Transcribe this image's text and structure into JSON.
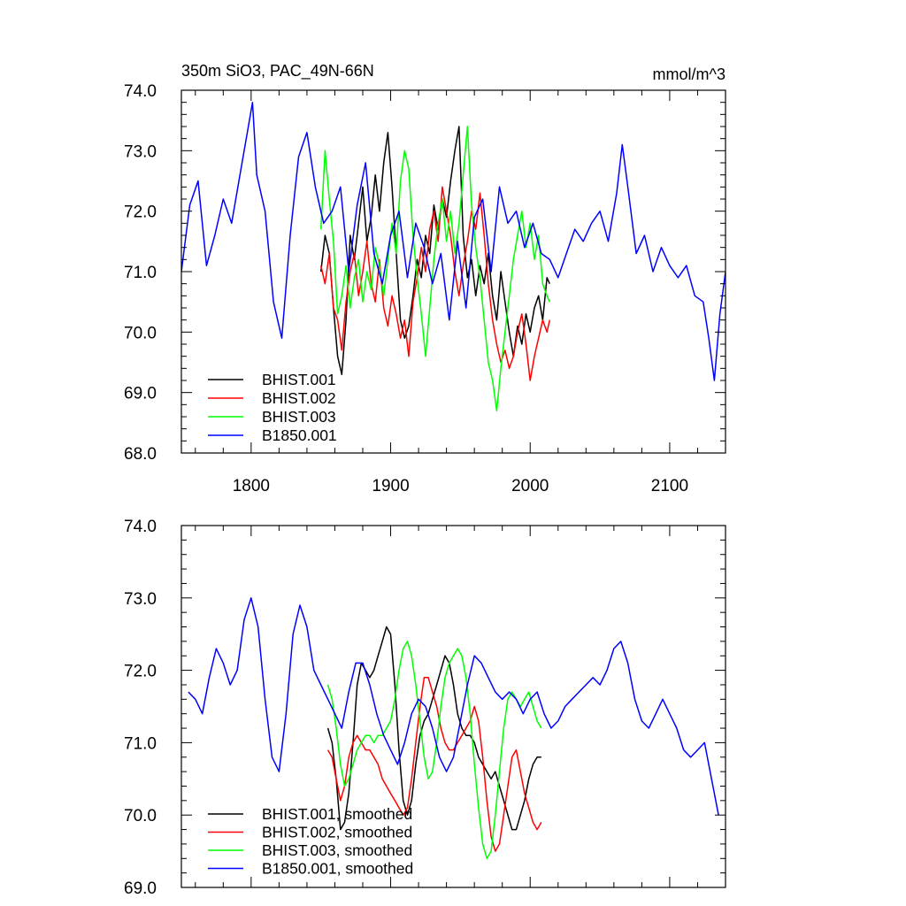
{
  "chart_data": [
    {
      "type": "line",
      "title": "350m SiO3, PAC_49N-66N",
      "units_label": "mmol/m^3",
      "xlabel": "",
      "ylabel": "",
      "xlim": [
        1750,
        2140
      ],
      "ylim": [
        68.0,
        74.0
      ],
      "x_ticks": [
        1800,
        1900,
        2000,
        2100
      ],
      "x_tick_labels": [
        "1800",
        "1900",
        "2000",
        "2100"
      ],
      "y_ticks": [
        68.0,
        69.0,
        70.0,
        71.0,
        72.0,
        73.0,
        74.0
      ],
      "y_tick_labels": [
        "68.0",
        "69.0",
        "70.0",
        "71.0",
        "72.0",
        "73.0",
        "74.0"
      ],
      "grid": false,
      "legend_position": "bottom-left",
      "series": [
        {
          "name": "BHIST.001",
          "color": "#000000",
          "x": [
            1850,
            1853,
            1856,
            1859,
            1862,
            1865,
            1868,
            1871,
            1874,
            1877,
            1880,
            1883,
            1886,
            1889,
            1892,
            1895,
            1898,
            1901,
            1904,
            1907,
            1910,
            1913,
            1916,
            1919,
            1922,
            1925,
            1928,
            1931,
            1934,
            1937,
            1940,
            1943,
            1946,
            1949,
            1952,
            1955,
            1958,
            1961,
            1964,
            1967,
            1970,
            1973,
            1976,
            1979,
            1982,
            1985,
            1988,
            1991,
            1994,
            1997,
            2000,
            2003,
            2006,
            2009,
            2012,
            2014
          ],
          "values": [
            71.0,
            71.6,
            71.3,
            70.4,
            69.6,
            69.3,
            70.2,
            71.6,
            71.2,
            71.8,
            72.4,
            71.5,
            71.9,
            72.6,
            72.0,
            72.8,
            73.3,
            72.4,
            71.3,
            70.2,
            69.9,
            70.1,
            70.6,
            71.2,
            70.9,
            71.6,
            71.3,
            72.1,
            71.7,
            72.2,
            71.9,
            72.5,
            73.0,
            73.4,
            71.6,
            70.9,
            71.2,
            70.6,
            71.1,
            70.8,
            71.3,
            70.6,
            70.2,
            71.0,
            70.5,
            70.0,
            69.6,
            70.1,
            69.8,
            70.3,
            70.0,
            70.4,
            70.6,
            70.2,
            70.9,
            70.8
          ]
        },
        {
          "name": "BHIST.002",
          "color": "#ff0000",
          "x": [
            1850,
            1853,
            1856,
            1859,
            1862,
            1865,
            1868,
            1871,
            1874,
            1877,
            1880,
            1883,
            1886,
            1889,
            1892,
            1895,
            1898,
            1901,
            1904,
            1907,
            1910,
            1913,
            1916,
            1919,
            1922,
            1925,
            1928,
            1931,
            1934,
            1937,
            1940,
            1943,
            1946,
            1949,
            1952,
            1955,
            1958,
            1961,
            1964,
            1967,
            1970,
            1973,
            1976,
            1979,
            1982,
            1985,
            1988,
            1991,
            1994,
            1997,
            2000,
            2003,
            2006,
            2009,
            2012,
            2014
          ],
          "values": [
            71.1,
            70.8,
            71.3,
            70.4,
            70.2,
            69.7,
            70.5,
            71.0,
            71.3,
            70.6,
            71.0,
            71.5,
            70.8,
            70.5,
            71.2,
            70.4,
            70.1,
            70.6,
            70.3,
            69.9,
            70.2,
            69.6,
            70.5,
            70.9,
            71.4,
            71.0,
            71.7,
            72.0,
            71.5,
            72.4,
            72.0,
            71.6,
            71.0,
            70.6,
            71.1,
            71.5,
            72.0,
            71.7,
            72.3,
            71.6,
            70.8,
            70.2,
            69.8,
            69.5,
            69.7,
            69.4,
            69.6,
            70.0,
            70.3,
            69.8,
            69.2,
            69.6,
            69.9,
            70.2,
            70.0,
            70.2
          ]
        },
        {
          "name": "BHIST.003",
          "color": "#00ff00",
          "x": [
            1850,
            1853,
            1856,
            1859,
            1862,
            1865,
            1868,
            1871,
            1874,
            1877,
            1880,
            1883,
            1886,
            1889,
            1892,
            1895,
            1898,
            1901,
            1904,
            1907,
            1910,
            1913,
            1916,
            1919,
            1922,
            1925,
            1928,
            1931,
            1934,
            1937,
            1940,
            1943,
            1946,
            1949,
            1952,
            1955,
            1958,
            1961,
            1964,
            1967,
            1970,
            1973,
            1976,
            1979,
            1982,
            1985,
            1988,
            1991,
            1994,
            1997,
            2000,
            2003,
            2006,
            2009,
            2012,
            2014
          ],
          "values": [
            71.7,
            73.0,
            72.2,
            71.5,
            70.3,
            70.6,
            71.1,
            70.4,
            70.9,
            71.2,
            70.5,
            71.0,
            70.7,
            71.4,
            71.1,
            70.6,
            71.2,
            71.8,
            71.3,
            72.5,
            73.0,
            72.7,
            71.6,
            70.9,
            70.3,
            69.6,
            70.4,
            71.2,
            71.8,
            72.2,
            71.5,
            72.0,
            71.3,
            71.8,
            72.6,
            73.4,
            72.1,
            71.4,
            70.9,
            70.2,
            69.5,
            69.2,
            68.7,
            69.4,
            70.0,
            70.6,
            71.2,
            71.6,
            72.0,
            71.4,
            71.8,
            71.2,
            71.6,
            70.8,
            70.6,
            70.5
          ]
        },
        {
          "name": "B1850.001",
          "color": "#0000ff",
          "x": [
            1750,
            1756,
            1762,
            1768,
            1774,
            1780,
            1786,
            1792,
            1798,
            1801,
            1804,
            1810,
            1816,
            1822,
            1828,
            1834,
            1840,
            1846,
            1852,
            1858,
            1864,
            1870,
            1876,
            1882,
            1888,
            1894,
            1900,
            1906,
            1912,
            1918,
            1924,
            1930,
            1936,
            1942,
            1948,
            1954,
            1960,
            1966,
            1972,
            1978,
            1984,
            1990,
            1996,
            2002,
            2008,
            2014,
            2020,
            2026,
            2032,
            2038,
            2044,
            2050,
            2056,
            2062,
            2066,
            2070,
            2076,
            2082,
            2088,
            2094,
            2100,
            2106,
            2112,
            2118,
            2124,
            2128,
            2132,
            2136,
            2140
          ],
          "values": [
            71.0,
            72.1,
            72.5,
            71.1,
            71.6,
            72.2,
            71.8,
            72.6,
            73.4,
            73.8,
            72.6,
            72.0,
            70.5,
            69.9,
            71.6,
            72.9,
            73.3,
            72.4,
            71.8,
            72.0,
            72.4,
            71.0,
            72.1,
            72.8,
            71.3,
            70.8,
            71.6,
            72.0,
            70.9,
            71.8,
            71.4,
            70.8,
            71.3,
            70.2,
            71.5,
            70.4,
            71.9,
            72.2,
            71.0,
            72.4,
            71.8,
            72.0,
            71.4,
            71.8,
            71.3,
            71.2,
            70.9,
            71.3,
            71.7,
            71.5,
            71.8,
            72.0,
            71.5,
            72.3,
            73.1,
            72.4,
            71.3,
            71.6,
            71.0,
            71.4,
            71.1,
            70.9,
            71.1,
            70.6,
            70.5,
            69.9,
            69.2,
            70.3,
            71.0
          ]
        }
      ]
    },
    {
      "type": "line",
      "title": "",
      "xlabel": "",
      "ylabel": "",
      "xlim": [
        1750,
        2140
      ],
      "ylim": [
        69.0,
        74.0
      ],
      "x_ticks": [
        1800,
        1900,
        2000,
        2100
      ],
      "y_ticks": [
        69.0,
        70.0,
        71.0,
        72.0,
        73.0,
        74.0
      ],
      "y_tick_labels": [
        "69.0",
        "70.0",
        "71.0",
        "72.0",
        "73.0",
        "74.0"
      ],
      "grid": false,
      "legend_position": "bottom-left",
      "series": [
        {
          "name": "BHIST.001, smoothed",
          "color": "#000000",
          "x": [
            1855,
            1858,
            1861,
            1864,
            1867,
            1870,
            1873,
            1876,
            1879,
            1882,
            1885,
            1888,
            1891,
            1894,
            1897,
            1900,
            1903,
            1906,
            1909,
            1912,
            1915,
            1918,
            1921,
            1924,
            1927,
            1930,
            1933,
            1936,
            1939,
            1942,
            1945,
            1948,
            1951,
            1954,
            1957,
            1960,
            1963,
            1966,
            1969,
            1972,
            1975,
            1978,
            1981,
            1984,
            1987,
            1990,
            1993,
            1996,
            1999,
            2002,
            2005,
            2008
          ],
          "values": [
            71.2,
            71.0,
            70.5,
            69.8,
            69.9,
            70.3,
            71.0,
            71.8,
            72.1,
            72.0,
            71.9,
            72.0,
            72.2,
            72.4,
            72.6,
            72.5,
            71.8,
            70.9,
            70.2,
            70.0,
            70.2,
            70.7,
            71.1,
            71.3,
            71.4,
            71.6,
            71.8,
            72.0,
            72.2,
            72.1,
            71.8,
            71.4,
            71.2,
            71.1,
            71.1,
            71.0,
            70.8,
            70.7,
            70.6,
            70.5,
            70.6,
            70.4,
            70.2,
            70.0,
            69.8,
            69.8,
            70.0,
            70.2,
            70.5,
            70.7,
            70.8,
            70.8
          ]
        },
        {
          "name": "BHIST.002, smoothed",
          "color": "#ff0000",
          "x": [
            1855,
            1858,
            1861,
            1864,
            1867,
            1870,
            1873,
            1876,
            1879,
            1882,
            1885,
            1888,
            1891,
            1894,
            1897,
            1900,
            1903,
            1906,
            1909,
            1912,
            1915,
            1918,
            1921,
            1924,
            1927,
            1930,
            1933,
            1936,
            1939,
            1942,
            1945,
            1948,
            1951,
            1954,
            1957,
            1960,
            1963,
            1966,
            1969,
            1972,
            1975,
            1978,
            1981,
            1984,
            1987,
            1990,
            1993,
            1996,
            1999,
            2002,
            2005,
            2008
          ],
          "values": [
            70.9,
            70.8,
            70.5,
            70.2,
            70.4,
            70.8,
            71.0,
            71.1,
            71.0,
            70.9,
            70.9,
            70.8,
            70.7,
            70.5,
            70.4,
            70.3,
            70.2,
            70.1,
            70.0,
            70.1,
            70.5,
            71.0,
            71.5,
            71.9,
            71.9,
            71.7,
            71.5,
            71.2,
            71.0,
            70.9,
            70.9,
            71.0,
            71.1,
            71.2,
            71.3,
            71.5,
            71.3,
            70.8,
            70.2,
            69.7,
            69.5,
            69.6,
            70.0,
            70.4,
            70.8,
            70.9,
            70.6,
            70.3,
            70.1,
            69.9,
            69.8,
            69.9
          ]
        },
        {
          "name": "BHIST.003, smoothed",
          "color": "#00ff00",
          "x": [
            1855,
            1858,
            1861,
            1864,
            1867,
            1870,
            1873,
            1876,
            1879,
            1882,
            1885,
            1888,
            1891,
            1894,
            1897,
            1900,
            1903,
            1906,
            1909,
            1912,
            1915,
            1918,
            1921,
            1924,
            1927,
            1930,
            1933,
            1936,
            1939,
            1942,
            1945,
            1948,
            1951,
            1954,
            1957,
            1960,
            1963,
            1966,
            1969,
            1972,
            1975,
            1978,
            1981,
            1984,
            1987,
            1990,
            1993,
            1996,
            1999,
            2002,
            2005,
            2008
          ],
          "values": [
            71.8,
            71.6,
            71.2,
            70.7,
            70.4,
            70.5,
            70.7,
            70.9,
            71.0,
            71.1,
            71.1,
            71.0,
            71.1,
            71.1,
            71.2,
            71.3,
            71.6,
            72.0,
            72.3,
            72.4,
            72.2,
            71.8,
            71.3,
            70.8,
            70.5,
            70.6,
            71.0,
            71.5,
            71.9,
            72.1,
            72.2,
            72.3,
            72.2,
            71.9,
            71.4,
            70.7,
            70.1,
            69.6,
            69.4,
            69.5,
            70.0,
            70.6,
            71.2,
            71.6,
            71.7,
            71.6,
            71.5,
            71.6,
            71.7,
            71.5,
            71.3,
            71.2
          ]
        },
        {
          "name": "B1850.001, smoothed",
          "color": "#0000ff",
          "x": [
            1755,
            1760,
            1765,
            1770,
            1775,
            1780,
            1785,
            1790,
            1795,
            1800,
            1805,
            1810,
            1815,
            1820,
            1825,
            1830,
            1835,
            1840,
            1845,
            1850,
            1855,
            1860,
            1865,
            1870,
            1875,
            1880,
            1885,
            1890,
            1895,
            1900,
            1905,
            1910,
            1915,
            1920,
            1925,
            1930,
            1935,
            1940,
            1945,
            1950,
            1955,
            1960,
            1965,
            1970,
            1975,
            1980,
            1985,
            1990,
            1995,
            2000,
            2005,
            2010,
            2015,
            2020,
            2025,
            2030,
            2035,
            2040,
            2045,
            2050,
            2055,
            2060,
            2065,
            2070,
            2075,
            2080,
            2085,
            2090,
            2095,
            2100,
            2105,
            2110,
            2115,
            2120,
            2125,
            2130,
            2135
          ],
          "values": [
            71.7,
            71.6,
            71.4,
            71.9,
            72.3,
            72.1,
            71.8,
            72.0,
            72.7,
            73.0,
            72.6,
            71.6,
            70.8,
            70.6,
            71.4,
            72.5,
            72.9,
            72.6,
            72.0,
            71.8,
            71.6,
            71.4,
            71.2,
            71.7,
            72.1,
            72.1,
            71.8,
            71.4,
            71.1,
            70.9,
            70.7,
            71.0,
            71.4,
            71.6,
            71.5,
            71.2,
            70.8,
            70.6,
            70.8,
            71.3,
            71.8,
            72.2,
            72.1,
            71.9,
            71.7,
            71.6,
            71.7,
            71.6,
            71.4,
            71.6,
            71.7,
            71.4,
            71.2,
            71.3,
            71.5,
            71.6,
            71.7,
            71.8,
            71.9,
            71.8,
            72.0,
            72.3,
            72.4,
            72.1,
            71.6,
            71.3,
            71.2,
            71.4,
            71.6,
            71.4,
            71.2,
            70.9,
            70.8,
            70.9,
            71.0,
            70.5,
            70.0
          ]
        }
      ]
    }
  ]
}
